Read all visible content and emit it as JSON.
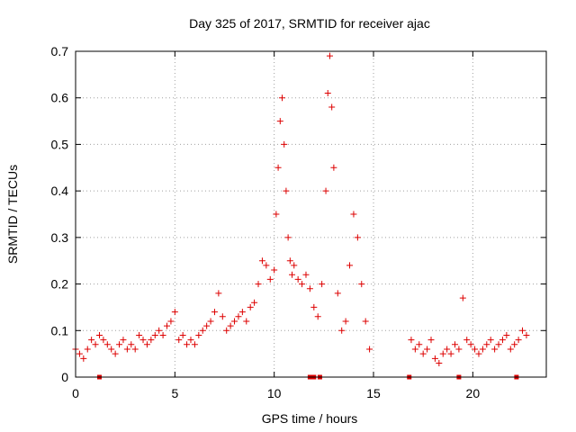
{
  "chart_data": {
    "type": "scatter",
    "title": "Day 325 of 2017, SRMTID for receiver ajac",
    "xlabel": "GPS time / hours",
    "ylabel": "SRMTID / TECUs",
    "xlim": [
      0,
      23.7
    ],
    "ylim": [
      0,
      0.7
    ],
    "x_ticks": [
      0,
      5,
      10,
      15,
      20
    ],
    "y_ticks": [
      0,
      0.1,
      0.2,
      0.3,
      0.4,
      0.5,
      0.6,
      0.7
    ],
    "x_tick_labels": [
      "0",
      "5",
      "10",
      "15",
      "20"
    ],
    "y_tick_labels": [
      "0",
      "0.1",
      "0.2",
      "0.3",
      "0.4",
      "0.5",
      "0.6",
      "0.7"
    ],
    "grid": true,
    "marker": "+",
    "color": "#dd0000",
    "baseline_markers_x": [
      1.2,
      11.8,
      12.0,
      12.3,
      16.8,
      19.3,
      22.2
    ],
    "series": [
      {
        "name": "SRMTID",
        "x": [
          0.0,
          0.2,
          0.4,
          0.6,
          0.8,
          1.0,
          1.2,
          1.4,
          1.6,
          1.8,
          2.0,
          2.2,
          2.4,
          2.6,
          2.8,
          3.0,
          3.2,
          3.4,
          3.6,
          3.8,
          4.0,
          4.2,
          4.4,
          4.6,
          4.8,
          5.0,
          5.2,
          5.4,
          5.6,
          5.8,
          6.0,
          6.2,
          6.4,
          6.6,
          6.8,
          7.0,
          7.2,
          7.4,
          7.6,
          7.8,
          8.0,
          8.2,
          8.4,
          8.6,
          8.8,
          9.0,
          9.2,
          9.4,
          9.6,
          9.8,
          10.0,
          10.1,
          10.2,
          10.3,
          10.4,
          10.5,
          10.6,
          10.7,
          10.8,
          10.9,
          11.0,
          11.2,
          11.4,
          11.6,
          11.8,
          12.0,
          12.2,
          12.4,
          12.6,
          12.7,
          12.8,
          12.9,
          13.0,
          13.2,
          13.4,
          13.6,
          13.8,
          14.0,
          14.2,
          14.4,
          14.6,
          14.8,
          16.9,
          17.1,
          17.3,
          17.5,
          17.7,
          17.9,
          18.1,
          18.3,
          18.5,
          18.7,
          18.9,
          19.1,
          19.3,
          19.5,
          19.7,
          19.9,
          20.1,
          20.3,
          20.5,
          20.7,
          20.9,
          21.1,
          21.3,
          21.5,
          21.7,
          21.9,
          22.1,
          22.3,
          22.5,
          22.7
        ],
        "y": [
          0.06,
          0.05,
          0.04,
          0.06,
          0.08,
          0.07,
          0.09,
          0.08,
          0.07,
          0.06,
          0.05,
          0.07,
          0.08,
          0.06,
          0.07,
          0.06,
          0.09,
          0.08,
          0.07,
          0.08,
          0.09,
          0.1,
          0.09,
          0.11,
          0.12,
          0.14,
          0.08,
          0.09,
          0.07,
          0.08,
          0.07,
          0.09,
          0.1,
          0.11,
          0.12,
          0.14,
          0.18,
          0.13,
          0.1,
          0.11,
          0.12,
          0.13,
          0.14,
          0.12,
          0.15,
          0.16,
          0.2,
          0.25,
          0.24,
          0.21,
          0.23,
          0.35,
          0.45,
          0.55,
          0.6,
          0.5,
          0.4,
          0.3,
          0.25,
          0.22,
          0.24,
          0.21,
          0.2,
          0.22,
          0.19,
          0.15,
          0.13,
          0.2,
          0.4,
          0.61,
          0.69,
          0.58,
          0.45,
          0.18,
          0.1,
          0.12,
          0.24,
          0.35,
          0.3,
          0.2,
          0.12,
          0.06,
          0.08,
          0.06,
          0.07,
          0.05,
          0.06,
          0.08,
          0.04,
          0.03,
          0.05,
          0.06,
          0.05,
          0.07,
          0.06,
          0.17,
          0.08,
          0.07,
          0.06,
          0.05,
          0.06,
          0.07,
          0.08,
          0.06,
          0.07,
          0.08,
          0.09,
          0.06,
          0.07,
          0.08,
          0.1,
          0.09
        ]
      }
    ]
  }
}
